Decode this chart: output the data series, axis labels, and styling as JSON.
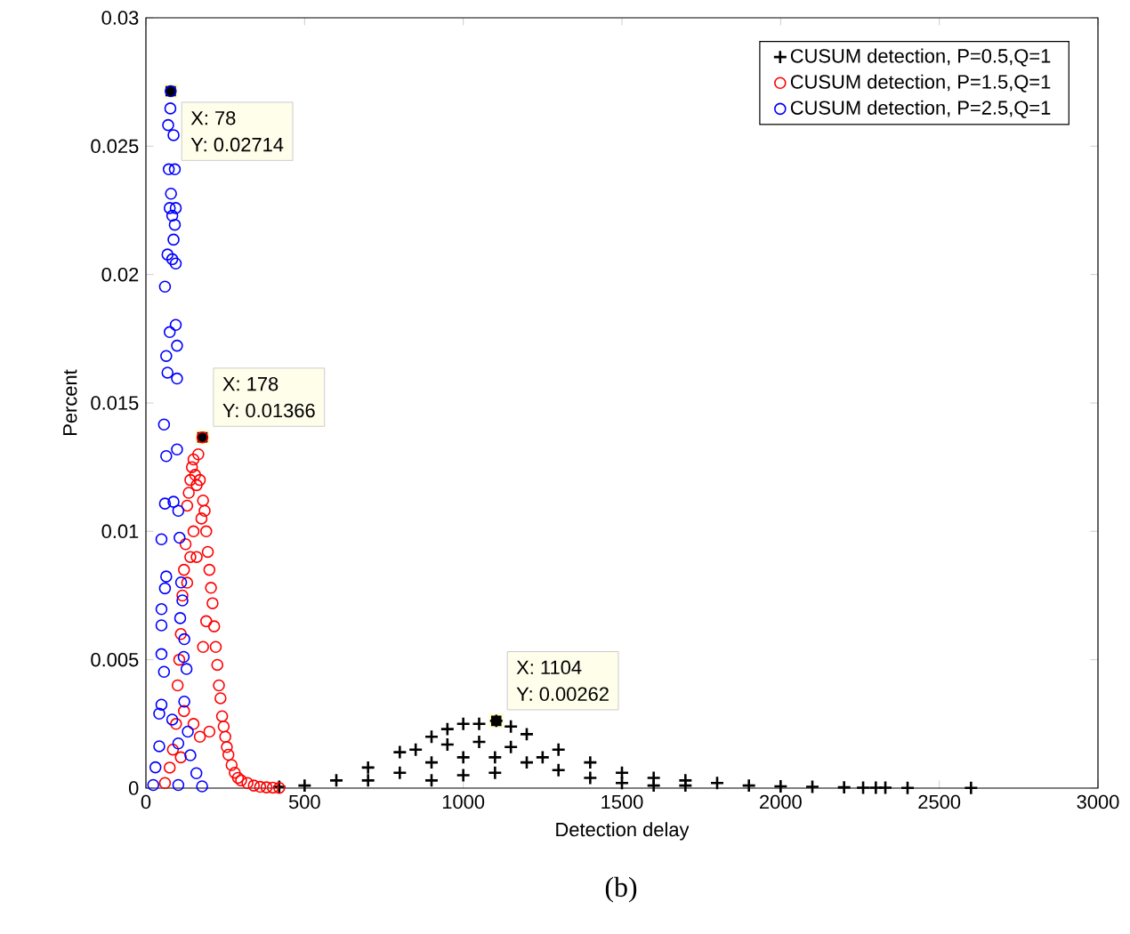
{
  "chart_data": {
    "type": "scatter",
    "xlabel": "Detection delay",
    "ylabel": "Percent",
    "xlim": [
      0,
      3000
    ],
    "ylim": [
      0,
      0.03
    ],
    "xticks": [
      0,
      500,
      1000,
      1500,
      2000,
      2500,
      3000
    ],
    "yticks": [
      0,
      0.005,
      0.01,
      0.015,
      0.02,
      0.025,
      0.03
    ],
    "grid": false,
    "legend": "top right",
    "series": [
      {
        "name": "CUSUM detection, P=0.5,Q=1",
        "color": "#000000",
        "marker": "cross",
        "x": [
          420,
          500,
          600,
          700,
          800,
          900,
          950,
          1000,
          1050,
          1104,
          1150,
          1200,
          1300,
          1400,
          1500,
          1600,
          1700,
          1800,
          1900,
          2000,
          2100,
          2200,
          2260,
          2300,
          2330,
          2400,
          2600,
          700,
          800,
          900,
          1000,
          1100,
          1200,
          1300,
          1400,
          1500,
          850,
          950,
          1050,
          1150,
          1250,
          1000,
          1100,
          900,
          1600,
          1700
        ],
        "values": [
          5e-05,
          0.0001,
          0.0003,
          0.0008,
          0.0014,
          0.002,
          0.0023,
          0.0025,
          0.0025,
          0.00262,
          0.0024,
          0.0021,
          0.0015,
          0.001,
          0.0006,
          0.0004,
          0.0003,
          0.0002,
          0.0001,
          7e-05,
          5e-05,
          3e-05,
          2e-05,
          2e-05,
          2e-05,
          1e-05,
          1e-05,
          0.0003,
          0.0006,
          0.001,
          0.0012,
          0.0012,
          0.001,
          0.0007,
          0.0004,
          0.0002,
          0.0015,
          0.0017,
          0.0018,
          0.0016,
          0.0012,
          0.0005,
          0.0006,
          0.0003,
          0.0001,
          0.0001
        ]
      },
      {
        "name": "CUSUM detection, P=1.5,Q=1",
        "color": "#ff0000",
        "marker": "circle",
        "x": [
          60,
          75,
          85,
          95,
          100,
          105,
          110,
          115,
          120,
          125,
          130,
          135,
          140,
          145,
          150,
          155,
          160,
          165,
          170,
          175,
          178,
          180,
          185,
          190,
          195,
          200,
          205,
          210,
          215,
          220,
          225,
          230,
          235,
          240,
          245,
          250,
          255,
          260,
          270,
          280,
          290,
          300,
          320,
          340,
          360,
          380,
          400,
          420,
          130,
          140,
          150,
          160,
          150,
          170,
          200,
          120,
          110,
          180,
          190
        ],
        "values": [
          0.0002,
          0.0008,
          0.0015,
          0.0025,
          0.004,
          0.005,
          0.006,
          0.0075,
          0.0085,
          0.0095,
          0.011,
          0.0115,
          0.012,
          0.0125,
          0.0128,
          0.0122,
          0.0118,
          0.013,
          0.012,
          0.0105,
          0.01366,
          0.0112,
          0.0108,
          0.01,
          0.0092,
          0.0085,
          0.0078,
          0.0072,
          0.0063,
          0.0055,
          0.0048,
          0.004,
          0.0035,
          0.0028,
          0.0024,
          0.002,
          0.0016,
          0.0013,
          0.0009,
          0.0006,
          0.0004,
          0.0003,
          0.0002,
          0.0001,
          5e-05,
          3e-05,
          2e-05,
          1e-05,
          0.008,
          0.009,
          0.01,
          0.009,
          0.0025,
          0.002,
          0.0022,
          0.003,
          0.0012,
          0.0055,
          0.0065
        ]
      },
      {
        "name": "CUSUM detection, P=2.5,Q=1",
        "color": "#0000ff",
        "marker": "circle",
        "x": [
          78,
          77,
          70,
          87,
          72,
          91,
          79,
          75,
          94,
          83,
          91,
          87,
          68,
          83,
          94,
          60,
          94,
          75,
          98,
          64,
          98,
          68,
          57,
          98,
          64,
          87,
          60,
          102,
          49,
          106,
          64,
          111,
          60,
          115,
          49,
          108,
          49,
          121,
          49,
          119,
          57,
          128,
          49,
          121,
          42,
          83,
          132,
          42,
          102,
          140,
          30,
          159,
          23,
          177,
          102
        ],
        "values": [
          0.02714,
          0.02647,
          0.02582,
          0.02543,
          0.0241,
          0.0241,
          0.02315,
          0.02259,
          0.02259,
          0.02229,
          0.02194,
          0.02136,
          0.02078,
          0.0206,
          0.02043,
          0.01953,
          0.01804,
          0.01776,
          0.01723,
          0.01683,
          0.01595,
          0.01618,
          0.01416,
          0.01319,
          0.01293,
          0.01115,
          0.01108,
          0.0108,
          0.00969,
          0.00975,
          0.00824,
          0.00801,
          0.00778,
          0.00731,
          0.00697,
          0.00662,
          0.00634,
          0.0058,
          0.00522,
          0.00511,
          0.00453,
          0.00464,
          0.00325,
          0.00337,
          0.0029,
          0.00267,
          0.0022,
          0.00163,
          0.00174,
          0.00128,
          0.00081,
          0.00058,
          0.00012,
          7e-05,
          0.00012
        ]
      }
    ],
    "annotations": [
      {
        "text": "X: 78",
        "x": 78,
        "y": 0.02714
      },
      {
        "text": "Y: 0.02714",
        "x": 78,
        "y": 0.02714
      },
      {
        "text": "X: 178",
        "x": 178,
        "y": 0.01366
      },
      {
        "text": "Y: 0.01366",
        "x": 178,
        "y": 0.01366
      },
      {
        "text": "X: 1104",
        "x": 1104,
        "y": 0.00262
      },
      {
        "text": "Y: 0.00262",
        "x": 1104,
        "y": 0.00262
      },
      "(b)"
    ]
  }
}
